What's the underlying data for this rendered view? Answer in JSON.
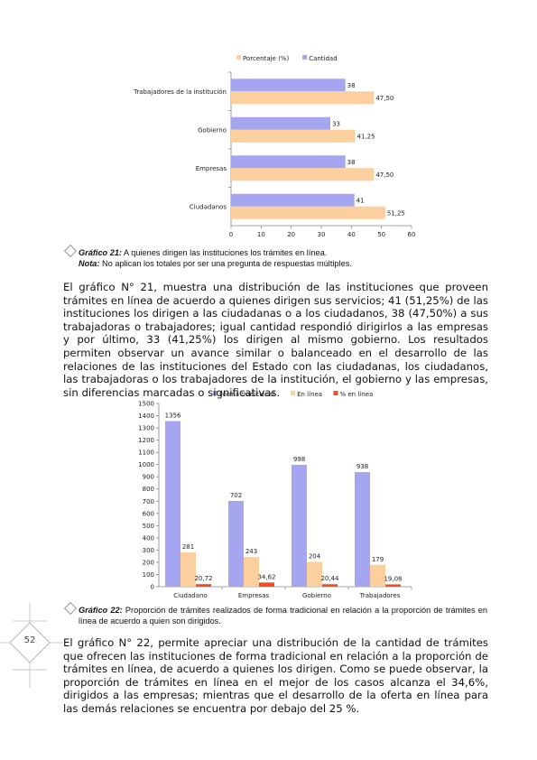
{
  "chart_data": [
    {
      "type": "bar",
      "orientation": "horizontal",
      "categories": [
        "Trabajadores de la institución",
        "Gobierno",
        "Empresas",
        "Ciudadanos"
      ],
      "series": [
        {
          "name": "Porcentaje (%)",
          "color": "#FCCF9E",
          "values": [
            47.5,
            41.25,
            47.5,
            51.25
          ],
          "labels": [
            "47,50",
            "41,25",
            "47,50",
            "51,25"
          ]
        },
        {
          "name": "Cantidad",
          "color": "#A5A5F0",
          "values": [
            38,
            33,
            38,
            41
          ],
          "labels": [
            "38",
            "33",
            "38",
            "41"
          ]
        }
      ],
      "xlim": [
        0,
        60
      ],
      "xticks": [
        "0",
        "10",
        "20",
        "30",
        "40",
        "50",
        "60"
      ],
      "legend": "top",
      "grid": false
    },
    {
      "type": "bar",
      "categories": [
        "Ciudadano",
        "Empresas",
        "Gobierno",
        "Trabajadores"
      ],
      "series": [
        {
          "name": "Forma tradicional",
          "color": "#A5A5F0",
          "values": [
            1356,
            702,
            998,
            938
          ],
          "labels": [
            "1356",
            "702",
            "998",
            "938"
          ]
        },
        {
          "name": "En línea",
          "color": "#FCCF9E",
          "values": [
            281,
            243,
            204,
            179
          ],
          "labels": [
            "281",
            "243",
            "204",
            "179"
          ]
        },
        {
          "name": "% en línea",
          "color": "#F0501E",
          "values": [
            20.72,
            34.62,
            20.44,
            19.08
          ],
          "labels": [
            "20,72",
            "34,62",
            "20,44",
            "19,08"
          ]
        }
      ],
      "ylim": [
        0,
        1500
      ],
      "yticks": [
        "0",
        "100",
        "200",
        "300",
        "400",
        "500",
        "600",
        "700",
        "800",
        "900",
        "1000",
        "1100",
        "1200",
        "1300",
        "1400",
        "1500"
      ],
      "legend": "top",
      "grid": false
    }
  ],
  "caption1": {
    "label": "Gráfico 21:",
    "text": " A quienes dirigen las instituciones los trámites en línea."
  },
  "note1": {
    "label": "Nota:",
    "text": " No aplican los totales por ser una pregunta de respuestas múltiples."
  },
  "paragraph1": "El gráfico N° 21, muestra una distribución de las instituciones que proveen trámites en línea de acuerdo a quienes dirigen sus servicios; 41 (51,25%) de las instituciones los dirigen a las ciudadanas o a los ciudadanos, 38 (47,50%) a sus trabajadoras o trabajadores; igual cantidad respondió dirigirlos a las empresas y por último, 33 (41,25%) los dirigen al mismo gobierno. Los resultados permiten observar un avance similar o balanceado en el desarrollo de las relaciones de las instituciones del Estado con las ciudadanas, los ciudadanos, las trabajadoras o los trabajadores de la institución, el gobierno y las empresas, sin diferencias marcadas o significativas.",
  "caption2": {
    "label": "Gráfico 22:",
    "text": " Proporción de trámites realizados de forma tradicional en relación a la proporción de trámites en línea de acuerdo a quien son dirigidos."
  },
  "paragraph2": "El gráfico N° 22, permite apreciar una distribución de la cantidad de trámites que ofrecen las instituciones de forma tradicional en relación a la proporción de trámites en línea, de acuerdo a quienes los dirigen. Como se puede observar, la proporción de trámites en línea en el mejor de los casos alcanza el 34,6%, dirigidos a las empresas; mientras que el desarrollo de la oferta en línea para las demás relaciones se encuentra por debajo del 25 %.",
  "page_number": "52"
}
